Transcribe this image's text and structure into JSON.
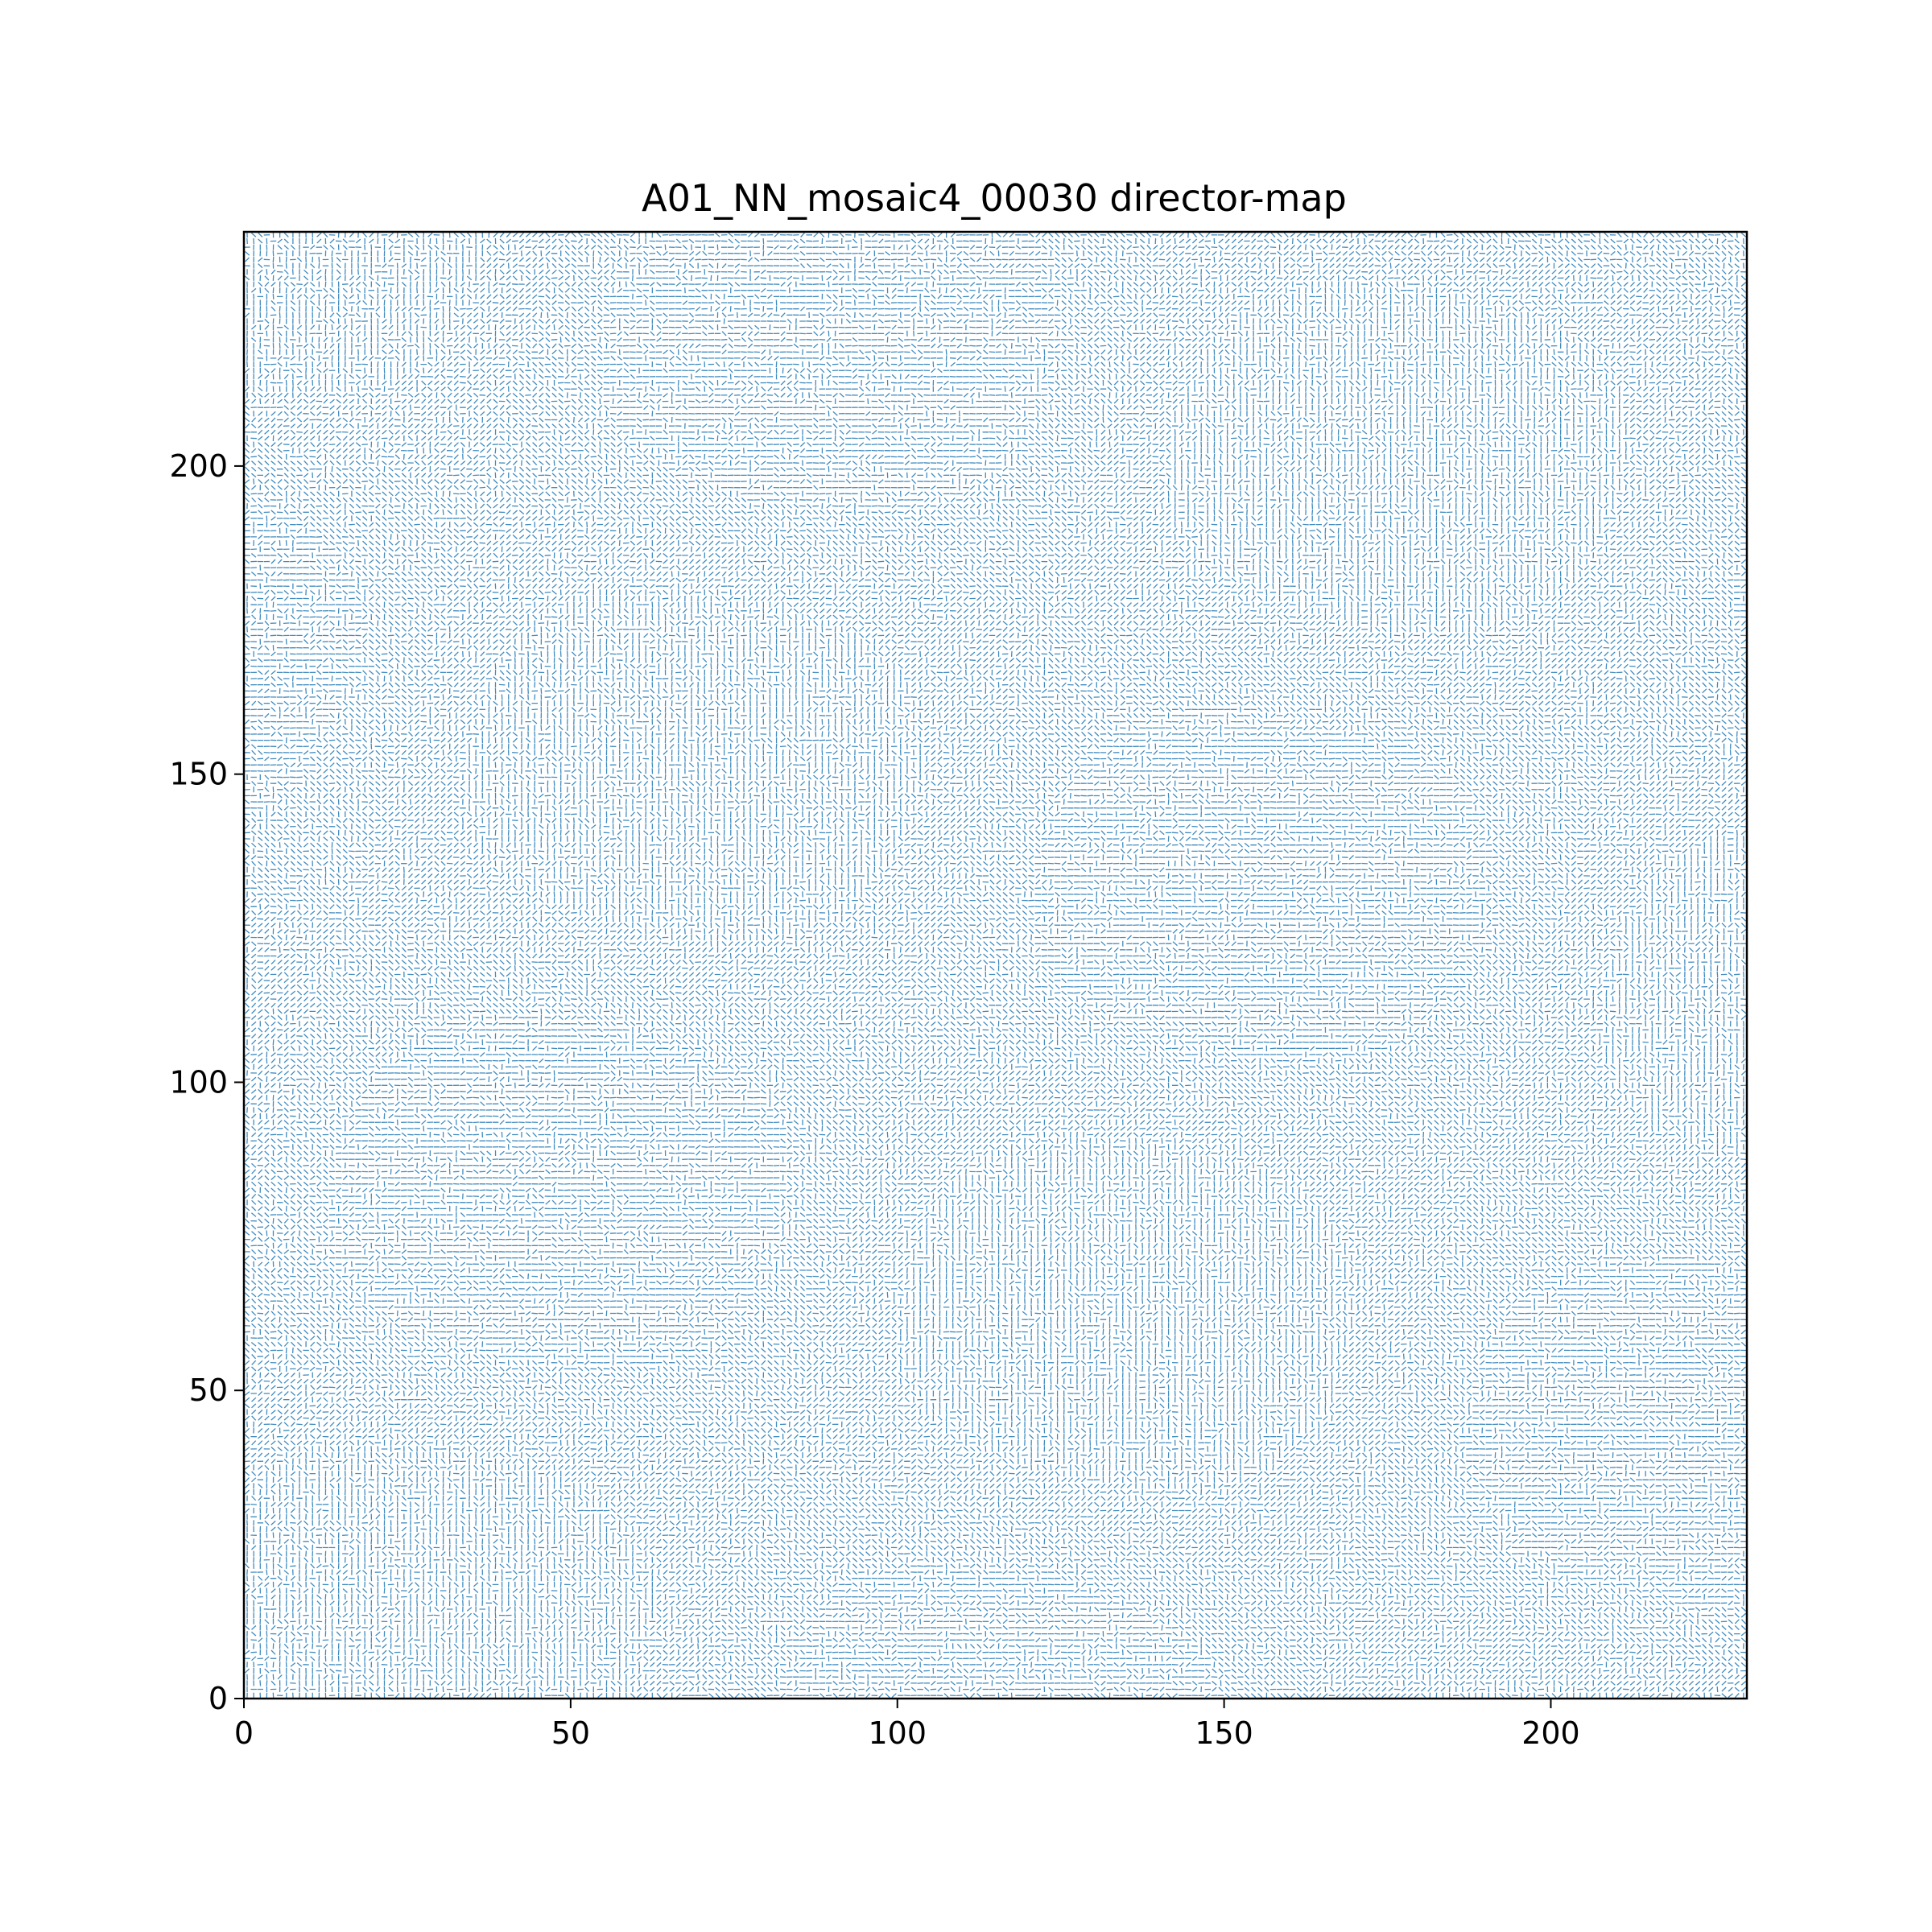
{
  "chart_data": {
    "type": "quiver",
    "title": "A01_NN_mosaic4_00030 director-map",
    "xlabel": "",
    "ylabel": "",
    "xlim": [
      0,
      230
    ],
    "ylim": [
      0,
      238
    ],
    "x_ticks": [
      0,
      50,
      100,
      150,
      200
    ],
    "y_ticks": [
      0,
      50,
      100,
      150,
      200
    ],
    "grid": false,
    "legend": "none",
    "line_color": "#1f77b4",
    "description_of_field": "headless director segments (nematic orientation field) on a 230 x 238 lattice",
    "orientation_families_deg": [
      0,
      45,
      90,
      135
    ]
  }
}
